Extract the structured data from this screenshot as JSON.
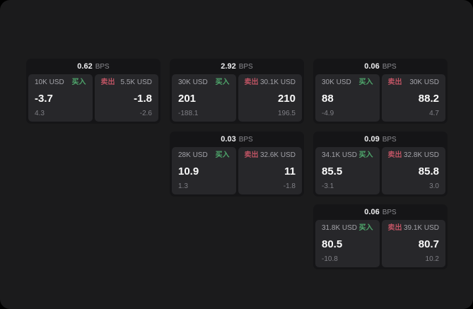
{
  "page": {
    "bps_unit": "BPS",
    "buy_label": "买入",
    "sell_label": "卖出",
    "colors": {
      "canvas": "#000000",
      "page_background": "#1b1b1c",
      "card_background": "#151517",
      "panel_background": "#27272a",
      "buy_green": "#4fa76c",
      "sell_red": "#bd5363"
    }
  },
  "cards": [
    {
      "bps": "0.62",
      "buy": {
        "size": "10K USD",
        "price": "-3.7",
        "delta": "4.3"
      },
      "sell": {
        "size": "5.5K USD",
        "price": "-1.8",
        "delta": "-2.6"
      }
    },
    {
      "bps": "2.92",
      "buy": {
        "size": "30K USD",
        "price": "201",
        "delta": "-188.1"
      },
      "sell": {
        "size": "30.1K USD",
        "price": "210",
        "delta": "196.5"
      }
    },
    {
      "bps": "0.06",
      "buy": {
        "size": "30K USD",
        "price": "88",
        "delta": "-4.9"
      },
      "sell": {
        "size": "30K USD",
        "price": "88.2",
        "delta": "4.7"
      }
    },
    {
      "bps": "0.03",
      "buy": {
        "size": "28K USD",
        "price": "10.9",
        "delta": "1.3"
      },
      "sell": {
        "size": "32.6K USD",
        "price": "11",
        "delta": "-1.8"
      }
    },
    {
      "bps": "0.09",
      "buy": {
        "size": "34.1K USD",
        "price": "85.5",
        "delta": "-3.1"
      },
      "sell": {
        "size": "32.8K USD",
        "price": "85.8",
        "delta": "3.0"
      }
    },
    {
      "bps": "0.06",
      "buy": {
        "size": "31.8K USD",
        "price": "80.5",
        "delta": "-10.8"
      },
      "sell": {
        "size": "39.1K USD",
        "price": "80.7",
        "delta": "10.2"
      }
    }
  ]
}
